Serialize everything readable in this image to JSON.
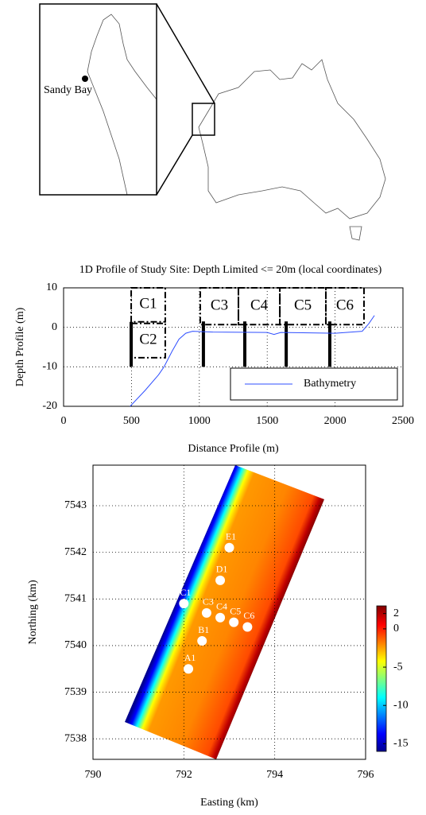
{
  "map": {
    "label": "Sandy Bay"
  },
  "chart_data": [
    {
      "type": "line",
      "title": "1D Profile of Study Site: Depth Limited <= 20m (local coordinates)",
      "xlabel": "Distance Profile (m)",
      "ylabel": "Depth Profile (m)",
      "xlim": [
        0,
        2500
      ],
      "ylim": [
        -20,
        10
      ],
      "xticks": [
        0,
        500,
        1000,
        1500,
        2000,
        2500
      ],
      "yticks": [
        -20,
        -10,
        0,
        10
      ],
      "grid": true,
      "legend": "lower right",
      "series": [
        {
          "name": "Bathymetry",
          "color": "#2f4fff",
          "x": [
            490,
            600,
            700,
            740,
            800,
            850,
            900,
            950,
            1100,
            1500,
            1550,
            1600,
            2000,
            2200,
            2250,
            2290
          ],
          "values": [
            -20,
            -16,
            -12,
            -10,
            -6,
            -3,
            -1.5,
            -1,
            -1.2,
            -1.3,
            -1.8,
            -1.3,
            -1.5,
            -1,
            1,
            3
          ]
        }
      ],
      "regions": [
        {
          "label": "C1",
          "x": [
            498,
            749
          ],
          "y": [
            1.4,
            10
          ]
        },
        {
          "label": "C2",
          "x": [
            498,
            749
          ],
          "y": [
            -7.7,
            1
          ]
        },
        {
          "label": "C3",
          "x": [
            1007,
            1288
          ],
          "y": [
            0.7,
            10
          ]
        },
        {
          "label": "C4",
          "x": [
            1288,
            1593
          ],
          "y": [
            0.7,
            10
          ]
        },
        {
          "label": "C5",
          "x": [
            1593,
            1932
          ],
          "y": [
            0.7,
            10
          ]
        },
        {
          "label": "C6",
          "x": [
            1932,
            2213
          ],
          "y": [
            0.7,
            10
          ]
        }
      ],
      "transects": [
        {
          "x": 498,
          "y": [
            -10,
            1.4
          ]
        },
        {
          "x": 1030,
          "y": [
            -10,
            1.5
          ]
        },
        {
          "x": 1335,
          "y": [
            -10,
            1.5
          ]
        },
        {
          "x": 1640,
          "y": [
            -10,
            1.5
          ]
        },
        {
          "x": 1961,
          "y": [
            -10,
            1.5
          ]
        }
      ]
    },
    {
      "type": "heatmap",
      "xlabel": "Easting (km)",
      "ylabel": "Northing (km)",
      "xlim": [
        790,
        796
      ],
      "ylim": [
        7537.56,
        7543.87
      ],
      "xticks": [
        790,
        792,
        794,
        796
      ],
      "yticks": [
        7538,
        7539,
        7540,
        7541,
        7542,
        7543
      ],
      "grid": true,
      "colorbar": {
        "lim": [
          -16,
          3
        ],
        "ticks": [
          2,
          0,
          -5,
          -10,
          -15
        ]
      },
      "points": [
        {
          "label": "E1",
          "x": 793.0,
          "y": 7542.1
        },
        {
          "label": "D1",
          "x": 792.8,
          "y": 7541.4
        },
        {
          "label": "C1",
          "x": 792.0,
          "y": 7540.9
        },
        {
          "label": "C3",
          "x": 792.5,
          "y": 7540.7
        },
        {
          "label": "C4",
          "x": 792.8,
          "y": 7540.6
        },
        {
          "label": "C5",
          "x": 793.1,
          "y": 7540.5
        },
        {
          "label": "C6",
          "x": 793.4,
          "y": 7540.4
        },
        {
          "label": "B1",
          "x": 792.4,
          "y": 7540.1
        },
        {
          "label": "A1",
          "x": 792.1,
          "y": 7539.5
        }
      ]
    }
  ]
}
